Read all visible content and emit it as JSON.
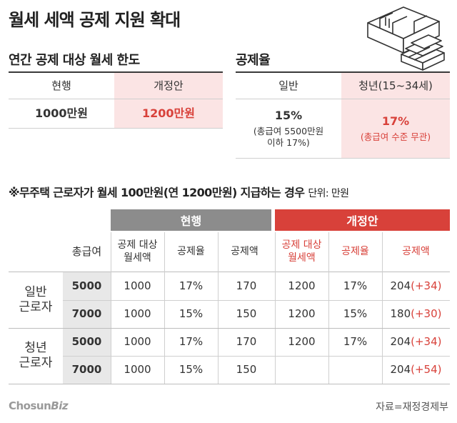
{
  "title": "월세 세액 공제 지원 확대",
  "limit": {
    "heading": "연간 공제 대상 월세 한도",
    "col_current": "현행",
    "col_proposed": "개정안",
    "val_current": "1000만원",
    "val_proposed": "1200만원"
  },
  "rate": {
    "heading": "공제율",
    "col_general": "일반",
    "col_youth": "청년(15~34세)",
    "general_value": "15%",
    "general_note1": "(총급여 5500만원",
    "general_note2": "이하 17%)",
    "youth_value": "17%",
    "youth_note": "(총급여 수준 무관)"
  },
  "note": {
    "text": "※무주택 근로자가 월세 100만원(연 1200만원) 지급하는 경우",
    "unit": "단위: 만원"
  },
  "table": {
    "band_current": "현행",
    "band_proposed": "개정안",
    "col_salary": "총급여",
    "col_target_1": "공제 대상",
    "col_target_2": "월세액",
    "col_rate": "공제율",
    "col_amount": "공제액",
    "group_general_1": "일반",
    "group_general_2": "근로자",
    "group_youth_1": "청년",
    "group_youth_2": "근로자",
    "rows": [
      {
        "salary": "5000",
        "c_target": "1000",
        "c_rate": "17%",
        "c_amount": "170",
        "p_target": "1200",
        "p_rate": "17%",
        "p_amount": "204",
        "p_delta": "(+34)"
      },
      {
        "salary": "7000",
        "c_target": "1000",
        "c_rate": "15%",
        "c_amount": "150",
        "p_target": "1200",
        "p_rate": "15%",
        "p_amount": "180",
        "p_delta": "(+30)"
      },
      {
        "salary": "5000",
        "c_target": "1000",
        "c_rate": "17%",
        "c_amount": "170",
        "p_target": "1200",
        "p_rate": "17%",
        "p_amount": "204",
        "p_delta": "(+34)"
      },
      {
        "salary": "7000",
        "c_target": "1000",
        "c_rate": "15%",
        "c_amount": "150",
        "p_target": "",
        "p_rate": "",
        "p_amount": "204",
        "p_delta": "(+54)"
      }
    ]
  },
  "footer": {
    "logo_a": "Chosun",
    "logo_b": "Biz",
    "source": "자료=재정경제부"
  },
  "colors": {
    "accent_red": "#d8413a",
    "pink_bg": "#fbe4e4",
    "gray_band": "#8c8c8c"
  },
  "icons": [
    "apartment-floorplan-illustration"
  ]
}
